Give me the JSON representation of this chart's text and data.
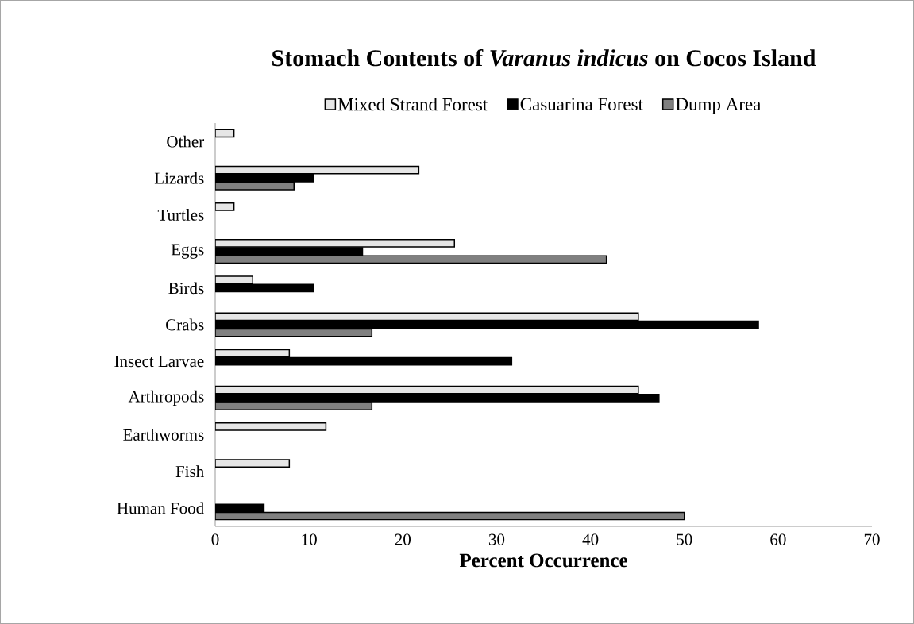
{
  "chart_data": {
    "type": "bar",
    "orientation": "horizontal",
    "title": "Stomach Contents of *Varanus indicus* on Cocos Island",
    "xlabel": "Percent Occurrence",
    "categories": [
      "Other",
      "Lizards",
      "Turtles",
      "Eggs",
      "Birds",
      "Crabs",
      "Insect Larvae",
      "Arthropods",
      "Earthworms",
      "Fish",
      "Human Food"
    ],
    "series": [
      {
        "name": "Mixed Strand Forest",
        "color": "#e6e6e6",
        "values": [
          2,
          21.7,
          2,
          25.5,
          4,
          45.1,
          7.9,
          45.1,
          11.8,
          7.9,
          null
        ]
      },
      {
        "name": "Casuarina Forest",
        "color": "#000000",
        "values": [
          null,
          10.5,
          null,
          15.7,
          10.5,
          57.9,
          31.6,
          47.3,
          null,
          null,
          5.2
        ]
      },
      {
        "name": "Dump Area",
        "color": "#808080",
        "values": [
          null,
          8.4,
          null,
          41.7,
          null,
          16.7,
          null,
          16.7,
          null,
          null,
          50
        ]
      }
    ],
    "xlim": [
      0,
      70
    ],
    "xticks": [
      0,
      10,
      20,
      30,
      40,
      50,
      60,
      70
    ],
    "legend": "top",
    "grid": false
  }
}
